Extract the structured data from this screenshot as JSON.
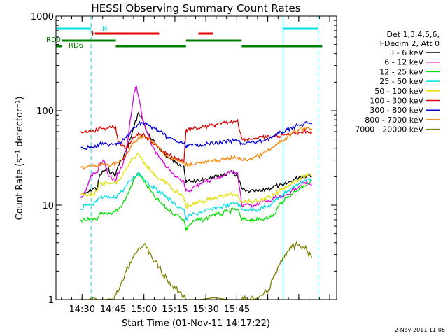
{
  "chart_data": {
    "type": "line",
    "title": "HESSI Observing Summary Count Rates",
    "xlabel": "Start Time (01-Nov-11 14:17:22)",
    "ylabel": "Count Rate (s⁻¹ detector⁻¹)",
    "yscale": "log",
    "ylim": [
      1,
      1000
    ],
    "xlim_min": [
      0,
      136
    ],
    "x_unit": "minutes after 14:17:22",
    "x_ticks": [
      "14:30",
      "14:45",
      "15:00",
      "15:15",
      "15:30",
      "15:45"
    ],
    "y_ticks": [
      "1",
      "10",
      "100",
      "1000"
    ],
    "timestamp": "2-Nov-2011 11:06",
    "legend": {
      "position": "right",
      "header": [
        "Det 1,3,4,5,6,",
        "FDecim 2, Att 0"
      ],
      "entries": [
        {
          "label": "3 - 6 keV",
          "color": "#000000"
        },
        {
          "label": "6 - 12 keV",
          "color": "#e000e0"
        },
        {
          "label": "12 - 25 keV",
          "color": "#00e000"
        },
        {
          "label": "25 - 50 keV",
          "color": "#00e0e0"
        },
        {
          "label": "50 - 100 keV",
          "color": "#e0e000"
        },
        {
          "label": "100 - 300 keV",
          "color": "#e00000"
        },
        {
          "label": "300 - 800 keV",
          "color": "#0000e0"
        },
        {
          "label": "800 - 7000 keV",
          "color": "#ff8000"
        },
        {
          "label": "7000 - 20000 keV",
          "color": "#808000"
        }
      ]
    },
    "flags": [
      {
        "label": "N",
        "color": "#00e0e0",
        "segments": [
          [
            0,
            17
          ],
          [
            110,
            127
          ]
        ]
      },
      {
        "label": "F",
        "color": "#e00000",
        "segments": [
          [
            19,
            50
          ],
          [
            69,
            76
          ]
        ]
      },
      {
        "label": "RD0",
        "color": "#008000",
        "segments": [
          [
            3,
            29
          ],
          [
            63,
            90
          ]
        ]
      },
      {
        "label": "RD6",
        "color": "#008000",
        "segments": [
          [
            0,
            3
          ],
          [
            29,
            63
          ],
          [
            90,
            129
          ]
        ]
      }
    ],
    "vertical_lines": [
      {
        "x": 0,
        "color": "#00e0e0",
        "style": "solid"
      },
      {
        "x": 17,
        "color": "#00e0e0",
        "style": "dashed"
      },
      {
        "x": 110,
        "color": "#00e0e0",
        "style": "solid"
      },
      {
        "x": 127,
        "color": "#00e0e0",
        "style": "dashed"
      }
    ],
    "series": [
      {
        "name": "3 - 6 keV",
        "color": "#000000",
        "x": [
          12,
          14,
          16,
          18,
          20,
          21,
          23,
          25,
          27,
          29,
          30,
          32,
          34,
          36,
          38,
          40,
          42,
          44,
          46,
          48,
          50,
          52,
          54,
          56,
          58,
          60,
          62,
          63,
          64,
          66,
          68,
          70,
          72,
          74,
          76,
          78,
          80,
          82,
          84,
          86,
          88,
          90,
          92,
          94,
          96,
          98,
          100,
          102,
          104,
          106,
          108,
          110,
          112,
          114,
          116,
          118,
          120,
          122,
          124
        ],
        "y": [
          12,
          13,
          14,
          15,
          15,
          20,
          23,
          24,
          22,
          21,
          26,
          30,
          38,
          50,
          70,
          95,
          80,
          60,
          50,
          45,
          40,
          36,
          32,
          30,
          28,
          27,
          26,
          17,
          18,
          18,
          18,
          18,
          19,
          19,
          20,
          20,
          21,
          21,
          22,
          22,
          20,
          15,
          14,
          14,
          14,
          14,
          14,
          15,
          15,
          16,
          16,
          16,
          17,
          18,
          19,
          20,
          20,
          21,
          20
        ]
      },
      {
        "name": "6 - 12 keV",
        "color": "#e000e0",
        "x": [
          12,
          14,
          16,
          18,
          20,
          21,
          23,
          25,
          27,
          29,
          30,
          32,
          34,
          36,
          38,
          39,
          40,
          42,
          44,
          46,
          48,
          50,
          52,
          54,
          56,
          58,
          60,
          62,
          63,
          64,
          66,
          68,
          70,
          72,
          74,
          76,
          78,
          80,
          82,
          84,
          86,
          88,
          90,
          92,
          94,
          96,
          98,
          100,
          102,
          104,
          106,
          108,
          110,
          112,
          114,
          116,
          118,
          120,
          122,
          124
        ],
        "y": [
          12,
          14,
          18,
          22,
          22,
          27,
          30,
          22,
          19,
          18,
          22,
          25,
          35,
          80,
          160,
          180,
          140,
          80,
          60,
          45,
          38,
          32,
          28,
          25,
          22,
          20,
          19,
          18,
          14,
          14,
          15,
          16,
          17,
          18,
          18,
          19,
          19,
          20,
          21,
          22,
          23,
          22,
          10,
          10,
          10,
          10,
          10,
          11,
          11,
          11,
          12,
          12,
          12,
          13,
          14,
          15,
          16,
          17,
          17,
          16
        ]
      },
      {
        "name": "12 - 25 keV",
        "color": "#00e000",
        "x": [
          12,
          14,
          16,
          18,
          20,
          21,
          23,
          25,
          27,
          29,
          30,
          32,
          34,
          36,
          38,
          40,
          42,
          44,
          46,
          48,
          50,
          52,
          54,
          56,
          58,
          60,
          62,
          63,
          64,
          66,
          68,
          70,
          72,
          74,
          76,
          78,
          80,
          82,
          84,
          86,
          88,
          90,
          92,
          94,
          96,
          98,
          100,
          102,
          104,
          106,
          108,
          110,
          112,
          114,
          116,
          118,
          120,
          122,
          124
        ],
        "y": [
          7,
          7,
          7,
          7,
          7,
          8,
          8,
          8,
          8,
          9,
          9,
          10,
          12,
          15,
          19,
          22,
          19,
          16,
          14,
          12,
          11,
          10,
          9,
          8.5,
          8,
          7.5,
          7,
          5.5,
          6,
          6.5,
          7,
          7,
          7,
          7.5,
          8,
          8,
          8,
          8.5,
          8.5,
          9,
          9,
          7,
          7,
          7,
          7,
          7,
          7,
          7.5,
          7.5,
          8,
          10,
          11,
          12,
          13,
          14,
          15,
          16,
          17,
          18
        ]
      },
      {
        "name": "25 - 50 keV",
        "color": "#00e0e0",
        "x": [
          12,
          14,
          16,
          18,
          20,
          21,
          23,
          25,
          27,
          29,
          30,
          32,
          34,
          36,
          38,
          40,
          42,
          44,
          46,
          48,
          50,
          52,
          54,
          56,
          58,
          60,
          62,
          63,
          64,
          66,
          68,
          70,
          72,
          74,
          76,
          78,
          80,
          82,
          84,
          86,
          88,
          90,
          92,
          94,
          96,
          98,
          100,
          102,
          104,
          106,
          108,
          110,
          112,
          114,
          116,
          118,
          120,
          122,
          124
        ],
        "y": [
          9,
          10,
          10,
          10,
          11,
          12,
          12,
          12,
          12,
          12,
          13,
          14,
          16,
          18,
          20,
          22,
          20,
          18,
          16,
          15,
          14,
          13,
          12,
          11,
          10,
          9.5,
          9,
          7,
          7.5,
          8,
          8,
          8.5,
          8.5,
          9,
          9,
          9.5,
          9.5,
          10,
          10,
          10.5,
          10.5,
          9,
          9,
          9,
          9,
          9,
          9.5,
          9.5,
          10,
          11,
          12,
          13,
          14,
          15,
          16,
          17,
          18,
          19,
          18
        ]
      },
      {
        "name": "50 - 100 keV",
        "color": "#e0e000",
        "x": [
          12,
          14,
          16,
          18,
          20,
          21,
          23,
          25,
          27,
          29,
          30,
          32,
          34,
          36,
          38,
          40,
          42,
          44,
          46,
          48,
          50,
          52,
          54,
          56,
          58,
          60,
          62,
          63,
          64,
          66,
          68,
          70,
          72,
          74,
          76,
          78,
          80,
          82,
          84,
          86,
          88,
          90,
          92,
          94,
          96,
          98,
          100,
          102,
          104,
          106,
          108,
          110,
          112,
          114,
          116,
          118,
          120,
          122,
          124
        ],
        "y": [
          13,
          13,
          13,
          13,
          14,
          17,
          17,
          17,
          17,
          17,
          18,
          20,
          24,
          28,
          32,
          35,
          30,
          26,
          23,
          21,
          19,
          18,
          17,
          15,
          14,
          13,
          12,
          9.5,
          10,
          10,
          10.5,
          11,
          11,
          11.5,
          12,
          12,
          12.5,
          12.5,
          13,
          13,
          13,
          11,
          11,
          11,
          11,
          11,
          11.5,
          12,
          12,
          13,
          14,
          15,
          16,
          17,
          18,
          19,
          20,
          21,
          20
        ]
      },
      {
        "name": "100 - 300 keV",
        "color": "#e00000",
        "x": [
          12,
          14,
          16,
          18,
          20,
          21,
          23,
          25,
          27,
          29,
          30,
          32,
          34,
          36,
          38,
          40,
          42,
          44,
          46,
          48,
          50,
          52,
          54,
          56,
          58,
          60,
          62,
          63,
          64,
          66,
          68,
          70,
          72,
          74,
          76,
          78,
          80,
          82,
          84,
          86,
          88,
          90,
          92,
          94,
          96,
          98,
          100,
          102,
          104,
          106,
          108,
          110,
          112,
          114,
          116,
          118,
          120,
          122,
          124
        ],
        "y": [
          60,
          60,
          61,
          62,
          62,
          65,
          65,
          65,
          66,
          67,
          48,
          42,
          40,
          45,
          52,
          58,
          56,
          52,
          48,
          44,
          40,
          37,
          35,
          33,
          31,
          30,
          29,
          62,
          63,
          64,
          65,
          66,
          67,
          68,
          70,
          71,
          72,
          74,
          75,
          77,
          80,
          50,
          50,
          50,
          51,
          51,
          52,
          52,
          53,
          53,
          54,
          55,
          56,
          57,
          58,
          59,
          60,
          60,
          59
        ]
      },
      {
        "name": "300 - 800 keV",
        "color": "#0000e0",
        "x": [
          12,
          14,
          16,
          18,
          20,
          21,
          23,
          25,
          27,
          29,
          30,
          32,
          34,
          36,
          38,
          40,
          42,
          44,
          46,
          48,
          50,
          52,
          54,
          56,
          58,
          60,
          62,
          63,
          64,
          66,
          68,
          70,
          72,
          74,
          76,
          78,
          80,
          82,
          84,
          86,
          88,
          90,
          92,
          94,
          96,
          98,
          100,
          102,
          104,
          106,
          108,
          110,
          112,
          114,
          116,
          118,
          120,
          122,
          124
        ],
        "y": [
          40,
          40,
          41,
          41,
          42,
          44,
          44,
          44,
          45,
          45,
          46,
          48,
          52,
          58,
          66,
          72,
          74,
          72,
          68,
          64,
          60,
          56,
          52,
          50,
          48,
          46,
          45,
          42,
          42,
          43,
          43,
          44,
          44,
          45,
          45,
          46,
          46,
          47,
          47,
          48,
          48,
          45,
          45,
          46,
          46,
          47,
          48,
          50,
          52,
          54,
          57,
          60,
          63,
          66,
          68,
          70,
          72,
          74,
          72
        ]
      },
      {
        "name": "800 - 7000 keV",
        "color": "#ff8000",
        "x": [
          12,
          14,
          16,
          18,
          20,
          21,
          23,
          25,
          27,
          29,
          30,
          32,
          34,
          36,
          38,
          40,
          42,
          44,
          46,
          48,
          50,
          52,
          54,
          56,
          58,
          60,
          62,
          63,
          64,
          66,
          68,
          70,
          72,
          74,
          76,
          78,
          80,
          82,
          84,
          86,
          88,
          90,
          92,
          94,
          96,
          98,
          100,
          102,
          104,
          106,
          108,
          110,
          112,
          114,
          116,
          118,
          120,
          122,
          124
        ],
        "y": [
          25,
          25,
          26,
          26,
          26,
          27,
          27,
          27,
          27,
          28,
          28,
          30,
          34,
          40,
          46,
          52,
          54,
          52,
          48,
          44,
          40,
          36,
          33,
          31,
          30,
          29,
          28,
          27,
          27,
          27,
          28,
          28,
          28,
          29,
          29,
          30,
          30,
          31,
          31,
          32,
          32,
          30,
          30,
          31,
          32,
          33,
          35,
          37,
          39,
          42,
          45,
          48,
          52,
          56,
          60,
          63,
          65,
          66,
          64
        ]
      },
      {
        "name": "7000 - 20000 keV",
        "color": "#808000",
        "x": [
          12,
          20,
          28,
          30,
          32,
          34,
          36,
          38,
          40,
          42,
          44,
          46,
          48,
          50,
          52,
          54,
          56,
          58,
          60,
          62,
          63,
          90,
          92,
          96,
          100,
          102,
          104,
          106,
          108,
          110,
          112,
          114,
          116,
          118,
          120,
          122,
          124
        ],
        "y": [
          1,
          1,
          1,
          1.2,
          1.6,
          2,
          2.5,
          3,
          3.5,
          3.7,
          3.5,
          3,
          2.5,
          2.2,
          1.8,
          1.6,
          1.4,
          1.3,
          1.2,
          1.1,
          1,
          1,
          1,
          1,
          1.1,
          1.2,
          1.4,
          1.8,
          2.3,
          2.8,
          3.2,
          3.5,
          3.7,
          3.8,
          3.6,
          3.2,
          2.8
        ]
      }
    ]
  }
}
